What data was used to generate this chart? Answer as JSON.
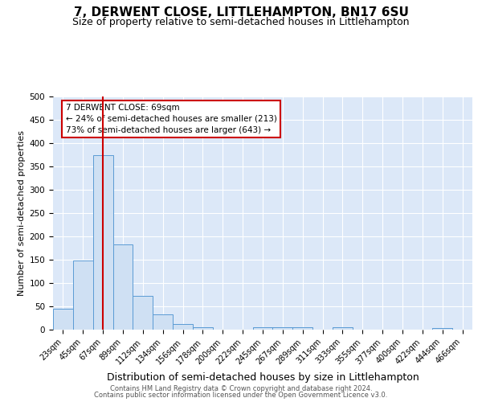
{
  "title": "7, DERWENT CLOSE, LITTLEHAMPTON, BN17 6SU",
  "subtitle": "Size of property relative to semi-detached houses in Littlehampton",
  "xlabel": "Distribution of semi-detached houses by size in Littlehampton",
  "ylabel": "Number of semi-detached properties",
  "footer1": "Contains HM Land Registry data © Crown copyright and database right 2024.",
  "footer2": "Contains public sector information licensed under the Open Government Licence v3.0.",
  "bin_labels": [
    "23sqm",
    "45sqm",
    "67sqm",
    "89sqm",
    "112sqm",
    "134sqm",
    "156sqm",
    "178sqm",
    "200sqm",
    "222sqm",
    "245sqm",
    "267sqm",
    "289sqm",
    "311sqm",
    "333sqm",
    "355sqm",
    "377sqm",
    "400sqm",
    "422sqm",
    "444sqm",
    "466sqm"
  ],
  "bar_heights": [
    45,
    148,
    375,
    183,
    72,
    32,
    12,
    6,
    0,
    0,
    6,
    6,
    6,
    0,
    5,
    0,
    0,
    0,
    0,
    4,
    0
  ],
  "bar_color": "#cfe0f3",
  "bar_edge_color": "#5b9bd5",
  "property_bin_index": 2,
  "red_line_color": "#cc0000",
  "annotation_text_line1": "7 DERWENT CLOSE: 69sqm",
  "annotation_text_line2": "← 24% of semi-detached houses are smaller (213)",
  "annotation_text_line3": "73% of semi-detached houses are larger (643) →",
  "annotation_box_color": "#ffffff",
  "annotation_box_edge": "#cc0000",
  "ylim": [
    0,
    500
  ],
  "yticks": [
    0,
    50,
    100,
    150,
    200,
    250,
    300,
    350,
    400,
    450,
    500
  ],
  "bg_color": "#dce8f8",
  "grid_color": "#ffffff",
  "title_fontsize": 11,
  "subtitle_fontsize": 9,
  "ylabel_fontsize": 8,
  "xlabel_fontsize": 9,
  "tick_fontsize": 7,
  "footer_fontsize": 6,
  "ann_fontsize": 7.5
}
